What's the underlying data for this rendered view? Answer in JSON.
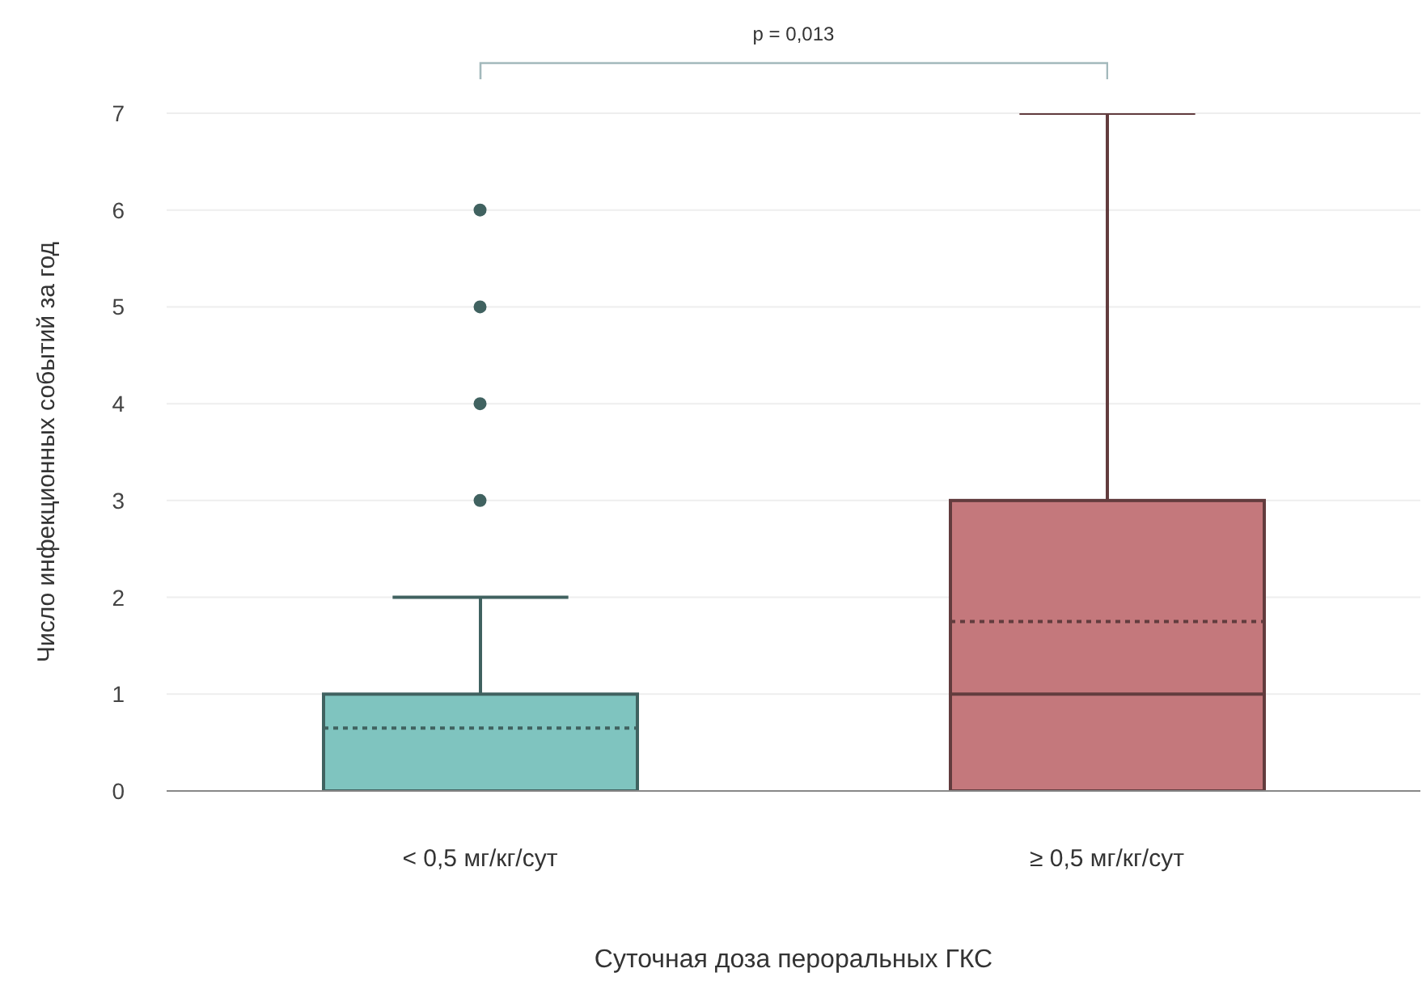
{
  "chart_data": {
    "type": "box",
    "xlabel": "Суточная доза пероральных ГКС",
    "ylabel": "Число инфекционных событий за год",
    "categories": [
      "< 0,5 мг/кг/сут",
      "≥ 0,5 мг/кг/сут"
    ],
    "colors": [
      "#7fc4bf",
      "#c4787c"
    ],
    "boxes": [
      {
        "low": 0,
        "q1": 0,
        "median": 0,
        "q3": 1,
        "high": 2,
        "mean": 0.65,
        "outliers": [
          3,
          4,
          5,
          6
        ]
      },
      {
        "low": 0,
        "q1": 0,
        "median": 1,
        "q3": 3,
        "high": 7,
        "mean": 1.75
      }
    ],
    "ylim": [
      0,
      7
    ],
    "yticks": [
      0,
      1,
      2,
      3,
      4,
      5,
      6,
      7
    ],
    "grid": "y",
    "annotations": [
      "p = 0,013"
    ]
  }
}
